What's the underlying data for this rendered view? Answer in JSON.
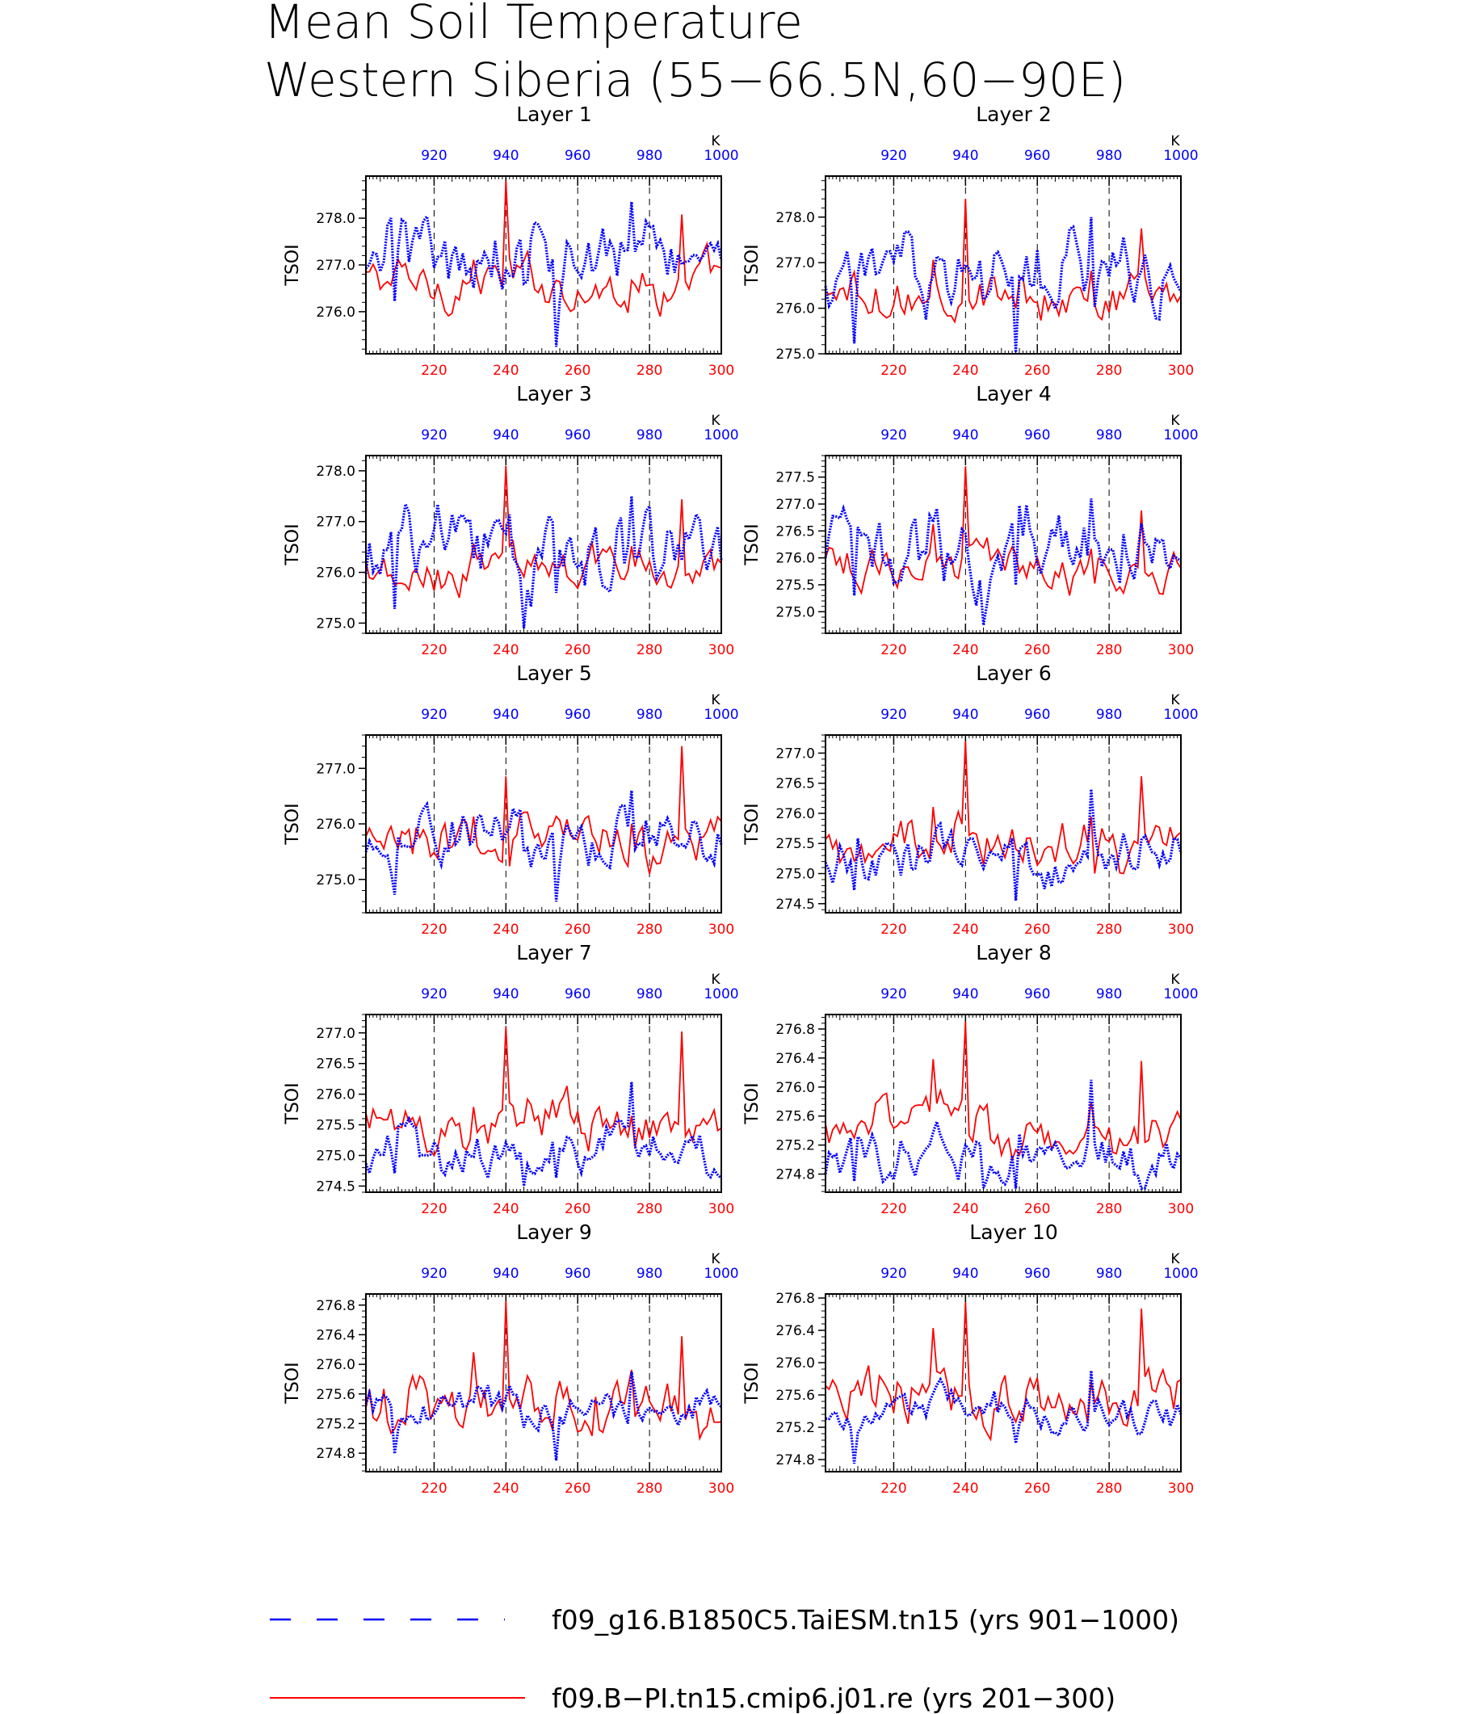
{
  "figure": {
    "title_line1": "Mean Soil Temperature",
    "title_line2": "Western Siberia (55−66.5N,60−90E)"
  },
  "colors": {
    "series_blue": "#0000ff",
    "series_red": "#ff0000",
    "axis": "#000000"
  },
  "legend": {
    "items": [
      {
        "label": "f09_g16.B1850C5.TaiESM.tn15 (yrs 901−1000)",
        "color": "#0000ff",
        "style": "dashed"
      },
      {
        "label": "f09.B−PI.tn15.cmip6.j01.re (yrs 201−300)",
        "color": "#ff0000",
        "style": "solid"
      }
    ]
  },
  "chart_data": {
    "type": "line",
    "layout": "5 rows x 2 columns",
    "ylabel": "TSOI",
    "bottom_axis": {
      "color": "red",
      "range": [
        201,
        300
      ],
      "ticks": [
        220,
        240,
        260,
        280,
        300
      ]
    },
    "top_axis": {
      "color": "blue",
      "range": [
        901,
        1000
      ],
      "ticks": [
        920,
        940,
        960,
        980,
        1000
      ],
      "unit_label": "K"
    },
    "grid": "dashed vertical lines at 220, 240, 260, 280",
    "panels": [
      {
        "title": "Layer 1",
        "ylim": [
          275.1,
          278.9
        ],
        "yticks": [
          276.0,
          277.0,
          278.0
        ],
        "ytick_labels": [
          "276.0",
          "277.0",
          "278.0"
        ],
        "series": [
          {
            "color": "blue",
            "years": "901-1000",
            "mean": 276.7,
            "min": 275.25,
            "max": 278.35
          },
          {
            "color": "red",
            "years": "201-300",
            "mean": 277.0,
            "min": 275.9,
            "max": 278.8
          }
        ]
      },
      {
        "title": "Layer 2",
        "ylim": [
          275.0,
          278.9
        ],
        "yticks": [
          275.0,
          276.0,
          277.0,
          278.0
        ],
        "ytick_labels": [
          "275.0",
          "276.0",
          "277.0",
          "278.0"
        ],
        "series": [
          {
            "color": "blue",
            "years": "901-1000",
            "mean": 276.5,
            "min": 275.0,
            "max": 278.0
          },
          {
            "color": "red",
            "years": "201-300",
            "mean": 276.8,
            "min": 275.7,
            "max": 278.4
          }
        ]
      },
      {
        "title": "Layer 3",
        "ylim": [
          274.8,
          278.3
        ],
        "yticks": [
          275.0,
          276.0,
          277.0,
          278.0
        ],
        "ytick_labels": [
          "275.0",
          "276.0",
          "277.0",
          "278.0"
        ],
        "series": [
          {
            "color": "blue",
            "years": "901-1000",
            "mean": 276.1,
            "min": 274.9,
            "max": 277.5
          },
          {
            "color": "red",
            "years": "201-300",
            "mean": 276.4,
            "min": 275.5,
            "max": 278.1
          }
        ]
      },
      {
        "title": "Layer 4",
        "ylim": [
          274.6,
          277.9
        ],
        "yticks": [
          275.0,
          275.5,
          276.0,
          276.5,
          277.0,
          277.5
        ],
        "ytick_labels": [
          "275.0",
          "275.5",
          "276.0",
          "276.5",
          "277.0",
          "277.5"
        ],
        "series": [
          {
            "color": "blue",
            "years": "901-1000",
            "mean": 275.9,
            "min": 274.75,
            "max": 277.1
          },
          {
            "color": "red",
            "years": "201-300",
            "mean": 276.3,
            "min": 275.3,
            "max": 277.7
          }
        ]
      },
      {
        "title": "Layer 5",
        "ylim": [
          274.4,
          277.6
        ],
        "yticks": [
          275.0,
          276.0,
          277.0
        ],
        "ytick_labels": [
          "275.0",
          "276.0",
          "277.0"
        ],
        "series": [
          {
            "color": "blue",
            "years": "901-1000",
            "mean": 275.6,
            "min": 274.6,
            "max": 276.6
          },
          {
            "color": "red",
            "years": "201-300",
            "mean": 275.9,
            "min": 275.1,
            "max": 277.4
          }
        ]
      },
      {
        "title": "Layer 6",
        "ylim": [
          274.35,
          277.3
        ],
        "yticks": [
          274.5,
          275.0,
          275.5,
          276.0,
          276.5,
          277.0
        ],
        "ytick_labels": [
          "274.5",
          "275.0",
          "275.5",
          "276.0",
          "276.5",
          "277.0"
        ],
        "series": [
          {
            "color": "blue",
            "years": "901-1000",
            "mean": 275.5,
            "min": 274.55,
            "max": 276.4
          },
          {
            "color": "red",
            "years": "201-300",
            "mean": 275.8,
            "min": 275.0,
            "max": 277.2
          }
        ]
      },
      {
        "title": "Layer 7",
        "ylim": [
          274.4,
          277.3
        ],
        "yticks": [
          274.5,
          275.0,
          275.5,
          276.0,
          276.5,
          277.0
        ],
        "ytick_labels": [
          "274.5",
          "275.0",
          "275.5",
          "276.0",
          "276.5",
          "277.0"
        ],
        "series": [
          {
            "color": "blue",
            "years": "901-1000",
            "mean": 275.4,
            "min": 274.5,
            "max": 276.2
          },
          {
            "color": "red",
            "years": "201-300",
            "mean": 275.8,
            "min": 275.0,
            "max": 277.1
          }
        ]
      },
      {
        "title": "Layer 8",
        "ylim": [
          274.55,
          277.0
        ],
        "yticks": [
          274.8,
          275.2,
          275.6,
          276.0,
          276.4,
          276.8
        ],
        "ytick_labels": [
          "274.8",
          "275.2",
          "275.6",
          "276.0",
          "276.4",
          "276.8"
        ],
        "series": [
          {
            "color": "blue",
            "years": "901-1000",
            "mean": 275.4,
            "min": 274.6,
            "max": 276.1
          },
          {
            "color": "red",
            "years": "201-300",
            "mean": 275.8,
            "min": 275.0,
            "max": 276.9
          }
        ]
      },
      {
        "title": "Layer 9",
        "ylim": [
          274.55,
          276.95
        ],
        "yticks": [
          274.8,
          275.2,
          275.6,
          276.0,
          276.4,
          276.8
        ],
        "ytick_labels": [
          "274.8",
          "275.2",
          "275.6",
          "276.0",
          "276.4",
          "276.8"
        ],
        "series": [
          {
            "color": "blue",
            "years": "901-1000",
            "mean": 275.3,
            "min": 274.7,
            "max": 275.9
          },
          {
            "color": "red",
            "years": "201-300",
            "mean": 275.8,
            "min": 275.0,
            "max": 276.85
          }
        ]
      },
      {
        "title": "Layer 10",
        "ylim": [
          274.65,
          276.85
        ],
        "yticks": [
          274.8,
          275.2,
          275.6,
          276.0,
          276.4,
          276.8
        ],
        "ytick_labels": [
          "274.8",
          "275.2",
          "275.6",
          "276.0",
          "276.4",
          "276.8"
        ],
        "series": [
          {
            "color": "blue",
            "years": "901-1000",
            "mean": 275.3,
            "min": 274.75,
            "max": 275.9
          },
          {
            "color": "red",
            "years": "201-300",
            "mean": 275.8,
            "min": 275.05,
            "max": 276.75
          }
        ]
      }
    ]
  }
}
